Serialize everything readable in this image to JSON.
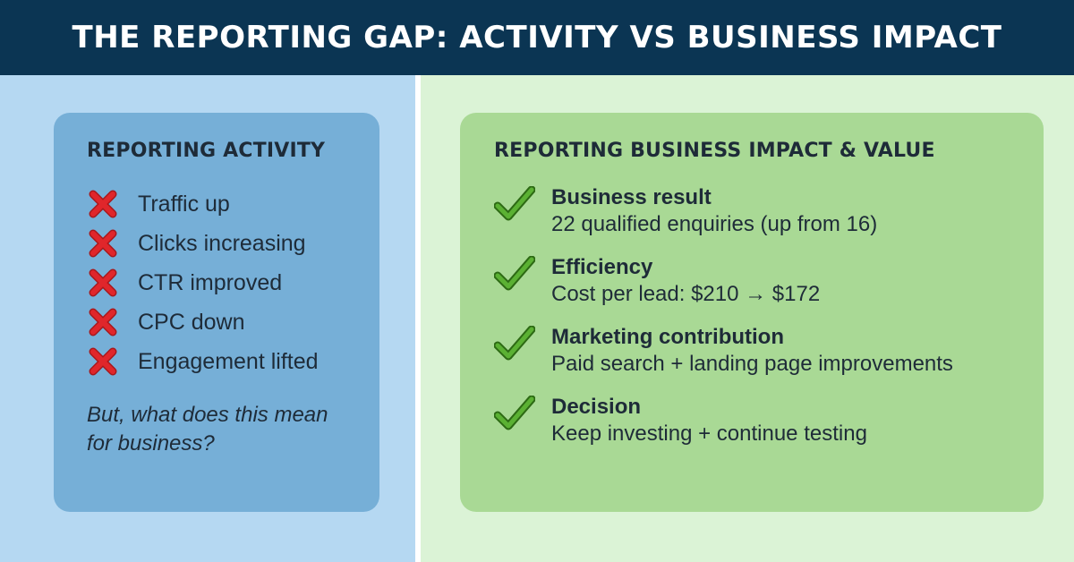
{
  "header": {
    "title": "THE REPORTING GAP: ACTIVITY VS BUSINESS IMPACT"
  },
  "activity": {
    "title": "REPORTING ACTIVITY",
    "icon": "red-x-icon",
    "items": [
      {
        "label": "Traffic up"
      },
      {
        "label": "Clicks increasing"
      },
      {
        "label": "CTR improved"
      },
      {
        "label": "CPC down"
      },
      {
        "label": "Engagement lifted"
      }
    ],
    "question": "But, what does this mean for business?"
  },
  "impact": {
    "title": "REPORTING BUSINESS IMPACT & VALUE",
    "icon": "green-check-icon",
    "items": [
      {
        "heading": "Business result",
        "detail": "22 qualified enquiries (up from 16)"
      },
      {
        "heading": "Efficiency",
        "detail": "Cost per lead: $210 → $172"
      },
      {
        "heading": "Marketing contribution",
        "detail": "Paid search + landing page improvements"
      },
      {
        "heading": "Decision",
        "detail": "Keep investing + continue testing"
      }
    ]
  },
  "colors": {
    "header_bg": "#0b3553",
    "left_pane": "#b5d8f2",
    "left_card": "#76afd7",
    "right_pane": "#dbf3d6",
    "right_card": "#a9d995",
    "x_red": "#e0262b",
    "check_green": "#4a9a2a"
  }
}
